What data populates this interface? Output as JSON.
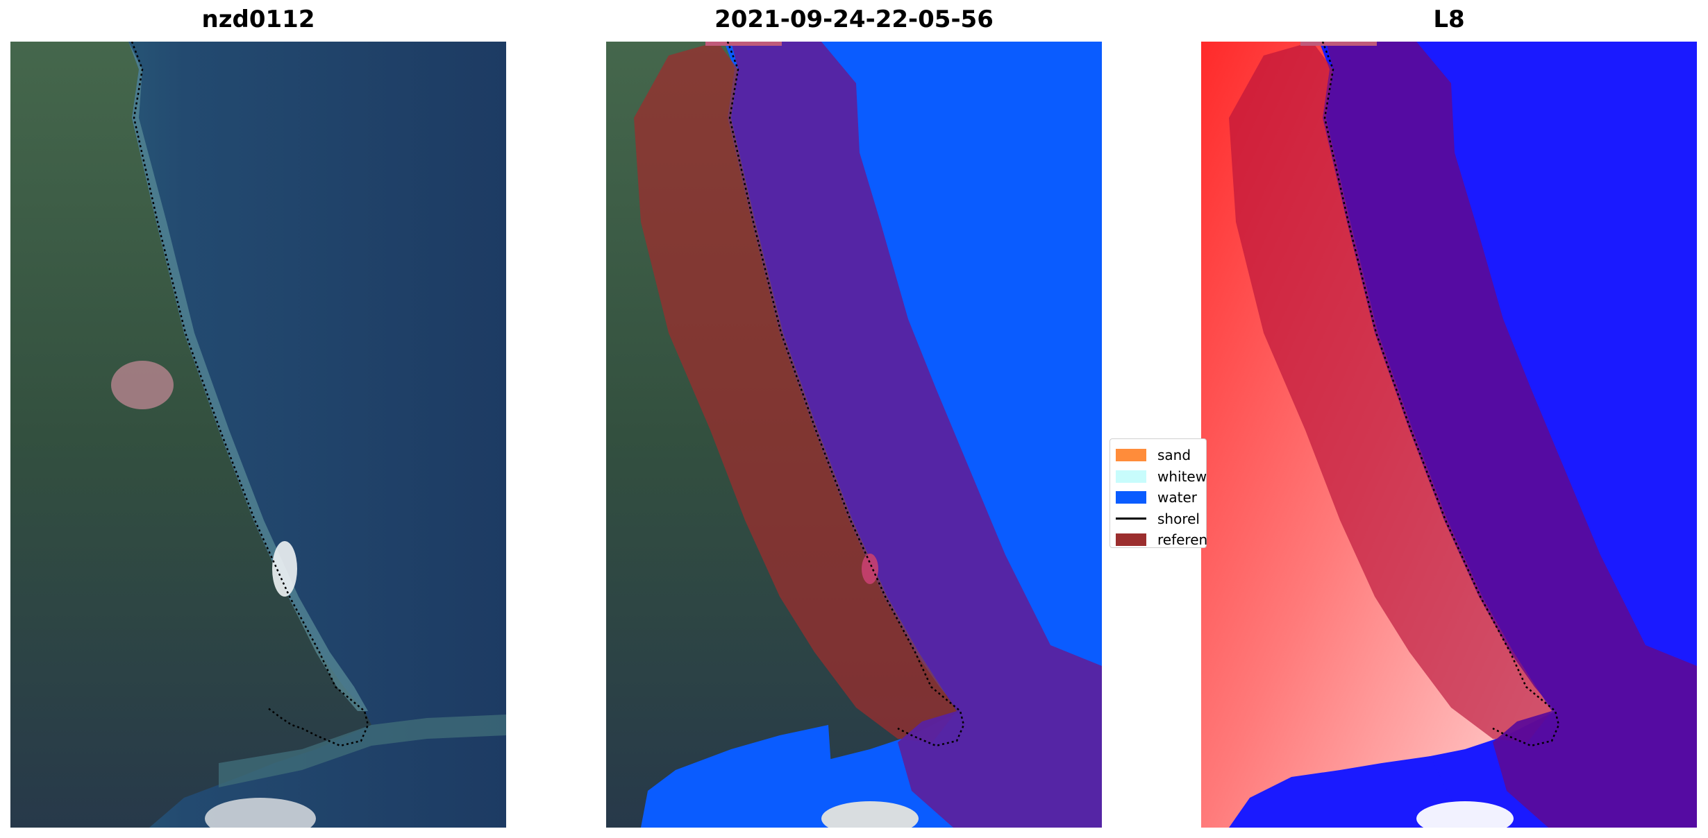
{
  "panels": [
    {
      "title": "nzd0112",
      "kind": "rgb-image"
    },
    {
      "title": "2021-09-24-22-05-56",
      "kind": "classification-overlay"
    },
    {
      "title": "L8",
      "kind": "mndwi-overlay"
    }
  ],
  "legend": {
    "items": [
      {
        "label": "sand",
        "color": "#ff8c3a",
        "marker": "patch"
      },
      {
        "label": "whitew",
        "color": "#c8fcfc",
        "marker": "patch"
      },
      {
        "label": "water",
        "color": "#0a5cff",
        "marker": "patch"
      },
      {
        "label": "shorel",
        "color": "#000000",
        "marker": "line"
      },
      {
        "label": "referen",
        "color": "#9b2e2e",
        "marker": "patch"
      }
    ]
  },
  "colors": {
    "water_class": "#0a5cff",
    "buffer_overlay": "#6a1b9a",
    "reference_overlay": "#9b2e2e",
    "sea_rgb": "#1f3e66",
    "land_rgb": "#3c5a3e",
    "mndwi_land": "#ff4040",
    "mndwi_water": "#1414ff"
  }
}
